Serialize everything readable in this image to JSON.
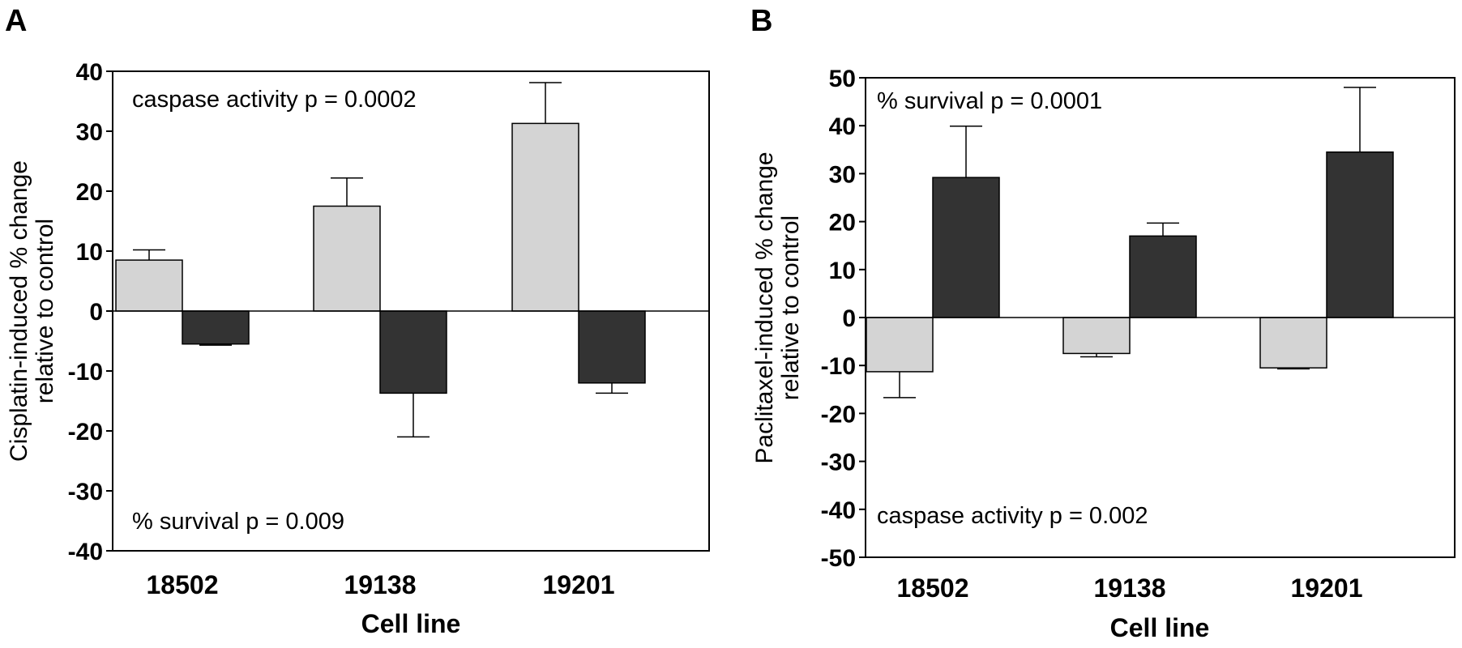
{
  "chart_data": [
    {
      "panel": "A",
      "type": "bar",
      "categories": [
        "18502",
        "19138",
        "19201"
      ],
      "series": [
        {
          "color": "#d4d4d4",
          "values": [
            8.5,
            17.5,
            31.3
          ],
          "error": [
            1.7,
            4.7,
            6.8
          ],
          "error_dir": "up"
        },
        {
          "color": "#333333",
          "values": [
            -5.5,
            -13.7,
            -12.0
          ],
          "error": [
            0.2,
            7.3,
            1.7
          ],
          "error_dir": "down"
        }
      ],
      "ylabel_lines": [
        "Cisplatin-induced % change",
        "relative to control"
      ],
      "xlabel": "Cell line",
      "ylim": [
        -40,
        40
      ],
      "yticks": [
        40,
        30,
        20,
        10,
        0,
        -10,
        -20,
        -30,
        -40
      ],
      "annotations": {
        "top": "caspase activity p = 0.0002",
        "bottom": "% survival  p = 0.009"
      }
    },
    {
      "panel": "B",
      "type": "bar",
      "categories": [
        "18502",
        "19138",
        "19201"
      ],
      "series": [
        {
          "color": "#d4d4d4",
          "values": [
            -11.3,
            -7.5,
            -10.5
          ],
          "error": [
            5.4,
            0.7,
            0.2
          ],
          "error_dir": "down"
        },
        {
          "color": "#333333",
          "values": [
            29.2,
            17.0,
            34.5
          ],
          "error": [
            10.7,
            2.7,
            13.5
          ],
          "error_dir": "up"
        }
      ],
      "ylabel_lines": [
        "Paclitaxel-induced % change",
        "relative to control"
      ],
      "xlabel": "Cell line",
      "ylim": [
        -50,
        50
      ],
      "yticks": [
        50,
        40,
        30,
        20,
        10,
        0,
        -10,
        -20,
        -30,
        -40,
        -50
      ],
      "annotations": {
        "top": "% survival p = 0.0001",
        "bottom": "caspase activity p = 0.002"
      }
    }
  ]
}
